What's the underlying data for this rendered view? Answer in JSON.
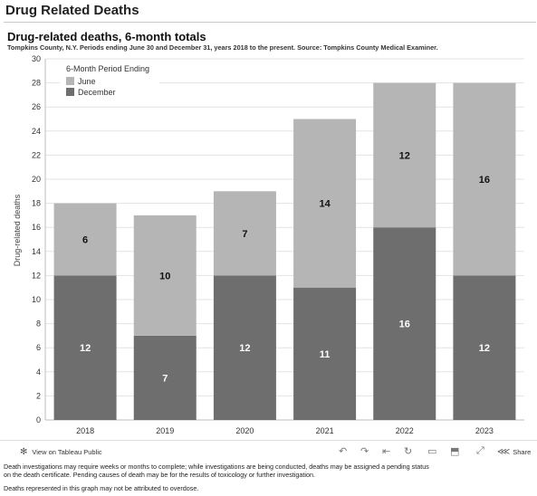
{
  "page_title": "Drug Related Deaths",
  "chart_title": "Drug-related deaths, 6-month totals",
  "chart_subtitle": "Tompkins County, N.Y. Periods ending June 30 and December 31, years 2018 to the present. Source: Tompkins County Medical Examiner.",
  "chart_data": {
    "type": "bar",
    "stacked": true,
    "categories": [
      "2018",
      "2019",
      "2020",
      "2021",
      "2022",
      "2023"
    ],
    "series": [
      {
        "name": "December",
        "values": [
          12,
          7,
          12,
          11,
          16,
          12
        ],
        "color": "#6e6e6e"
      },
      {
        "name": "June",
        "values": [
          6,
          10,
          7,
          14,
          12,
          16
        ],
        "color": "#b5b5b5"
      }
    ],
    "ylabel": "Drug-related deaths",
    "ylim": [
      0,
      30
    ],
    "yticks": [
      0,
      2,
      4,
      6,
      8,
      10,
      12,
      14,
      16,
      18,
      20,
      22,
      24,
      26,
      28,
      30
    ],
    "grid": true,
    "legend": {
      "title": "6-Month Period Ending",
      "entries": [
        {
          "label": "June",
          "color": "#b5b5b5"
        },
        {
          "label": "December",
          "color": "#6e6e6e"
        }
      ],
      "position": "top-left"
    }
  },
  "toolbar": {
    "tableau_link": "View on Tableau Public",
    "share_label": "Share",
    "icons": [
      "undo-icon",
      "redo-icon",
      "revert-icon",
      "refresh-icon",
      "comment-icon",
      "download-icon",
      "fullscreen-icon",
      "share-icon"
    ]
  },
  "notes": {
    "line1": "Death investigations may require weeks or months to complete; while investigations are being conducted, deaths may be assigned a pending status",
    "line2": "on the death certificate. Pending causes of death may be for the results of toxicology or further investigation.",
    "line3": "Deaths represented in this graph may not be attributed to overdose."
  }
}
